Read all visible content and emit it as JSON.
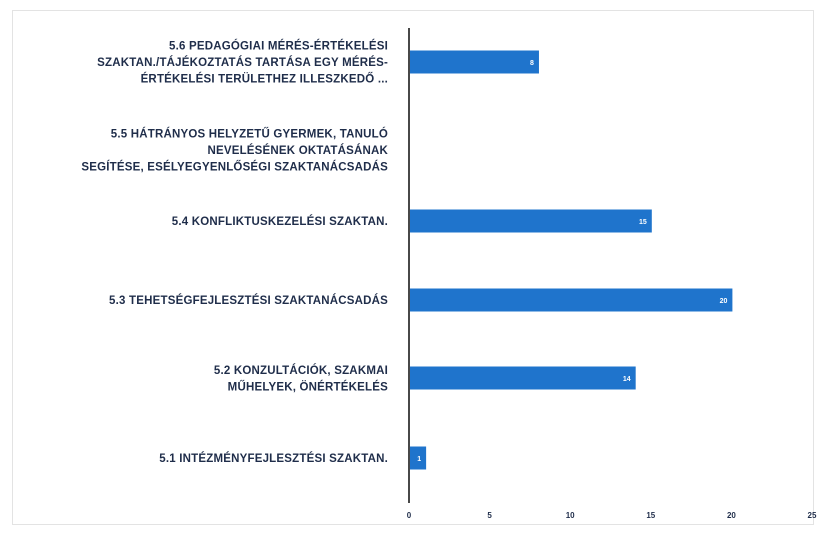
{
  "colors": {
    "bar": "#1f74cc",
    "axis": "#1a1a1a",
    "text": "#1f2d4a",
    "data_label": "#ffffff"
  },
  "chart_data": {
    "type": "bar",
    "orientation": "horizontal",
    "categories": [
      [
        "5.6 PEDAGÓGIAI MÉRÉS-ÉRTÉKELÉSI",
        "SZAKTAN./TÁJÉKOZTATÁS TARTÁSA EGY MÉRÉS-",
        "ÉRTÉKELÉSI TERÜLETHEZ ILLESZKEDŐ ..."
      ],
      [
        "5.5 HÁTRÁNYOS HELYZETŰ GYERMEK, TANULÓ",
        "NEVELÉSÉNEK OKTATÁSÁNAK",
        "SEGÍTÉSE, ESÉLYEGYENLŐSÉGI SZAKTANÁCSADÁS"
      ],
      [
        "5.4 KONFLIKTUSKEZELÉSI SZAKTAN."
      ],
      [
        "5.3 TEHETSÉGFEJLESZTÉSI SZAKTANÁCSADÁS"
      ],
      [
        "5.2 KONZULTÁCIÓK, SZAKMAI",
        "MŰHELYEK, ÖNÉRTÉKELÉS"
      ],
      [
        "5.1 INTÉZMÉNYFEJLESZTÉSI SZAKTAN."
      ]
    ],
    "values": [
      8,
      null,
      15,
      20,
      14,
      1
    ],
    "data_labels": [
      "8",
      "",
      "15",
      "20",
      "14",
      "1"
    ],
    "xlim": [
      0,
      25
    ],
    "xticks": [
      0,
      5,
      10,
      15,
      20,
      25
    ],
    "xtick_labels": [
      "0",
      "5",
      "10",
      "15",
      "20",
      "25"
    ],
    "grid": false,
    "legend": "none"
  }
}
